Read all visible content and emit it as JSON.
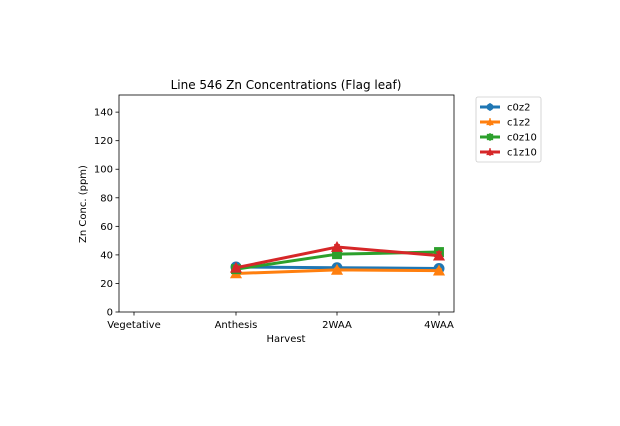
{
  "chart_data": {
    "type": "line",
    "title": "Line 546 Zn Concentrations (Flag leaf)",
    "xlabel": "Harvest",
    "ylabel": "Zn Conc. (ppm)",
    "categories": [
      "Vegetative",
      "Anthesis",
      "2WAA",
      "4WAA"
    ],
    "ylim": [
      0,
      152
    ],
    "yticks": [
      0,
      20,
      40,
      60,
      80,
      100,
      120,
      140
    ],
    "grid": false,
    "legend_position": "outside-upper-right",
    "series": [
      {
        "name": "c0z2",
        "color": "#1f77b4",
        "marker": "circle",
        "values": [
          null,
          31.5,
          31.0,
          30.5
        ],
        "errors": [
          null,
          1.0,
          1.0,
          1.0
        ]
      },
      {
        "name": "c1z2",
        "color": "#ff7f0e",
        "marker": "triangle-up",
        "values": [
          null,
          27.0,
          29.5,
          29.0
        ],
        "errors": [
          null,
          1.0,
          1.0,
          1.0
        ]
      },
      {
        "name": "c0z10",
        "color": "#2ca02c",
        "marker": "square",
        "values": [
          null,
          30.0,
          40.5,
          42.0
        ],
        "errors": [
          null,
          1.0,
          1.5,
          2.0
        ]
      },
      {
        "name": "c1z10",
        "color": "#d62728",
        "marker": "triangle-up",
        "values": [
          null,
          31.0,
          45.5,
          39.5
        ],
        "errors": [
          null,
          1.0,
          1.5,
          2.5
        ]
      }
    ]
  }
}
